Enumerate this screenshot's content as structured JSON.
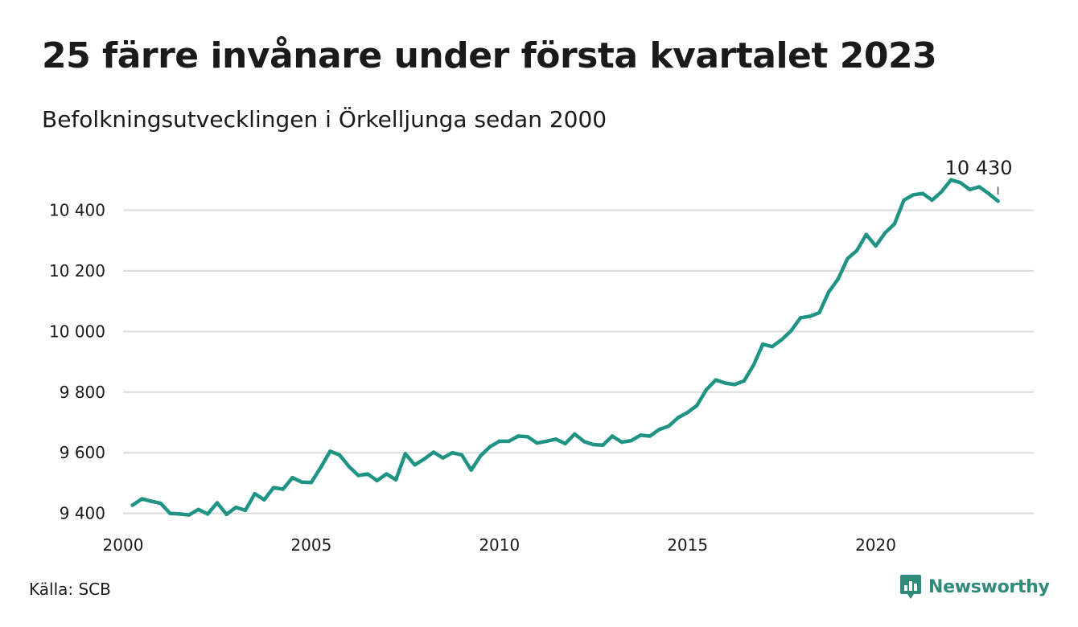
{
  "header": {
    "title": "25 färre invånare under första kvartalet 2023",
    "subtitle": "Befolkningsutvecklingen i Örkelljunga sedan 2000"
  },
  "footer": {
    "source": "Källa: SCB",
    "brand": "Newsworthy"
  },
  "colors": {
    "line": "#1f9384",
    "grid": "#dcdcdc",
    "brand": "#2f8a79"
  },
  "icons": {
    "brand_logo": "chat-bubble-bar-chart-icon"
  },
  "chart_data": {
    "type": "line",
    "title": "25 färre invånare under första kvartalet 2023",
    "subtitle": "Befolkningsutvecklingen i Örkelljunga sedan 2000",
    "xlabel": "",
    "ylabel": "",
    "xlim": [
      2000,
      2024.2
    ],
    "ylim": [
      9370,
      10510
    ],
    "x_ticks": [
      {
        "value": 2000,
        "label": "2000"
      },
      {
        "value": 2005,
        "label": "2005"
      },
      {
        "value": 2010,
        "label": "2010"
      },
      {
        "value": 2015,
        "label": "2015"
      },
      {
        "value": 2020,
        "label": "2020"
      }
    ],
    "y_ticks": [
      {
        "value": 9400,
        "label": "9 400"
      },
      {
        "value": 9600,
        "label": "9 600"
      },
      {
        "value": 9800,
        "label": "9 800"
      },
      {
        "value": 10000,
        "label": "10 000"
      },
      {
        "value": 10200,
        "label": "10 200"
      },
      {
        "value": 10400,
        "label": "10 400"
      }
    ],
    "grid": true,
    "legend": "none",
    "series": [
      {
        "x": [
          2000.25,
          2000.5,
          2000.75,
          2001.0,
          2001.25,
          2001.5,
          2001.75,
          2002.0,
          2002.25,
          2002.5,
          2002.75,
          2003.0,
          2003.25,
          2003.5,
          2003.75,
          2004.0,
          2004.25,
          2004.5,
          2004.75,
          2005.0,
          2005.25,
          2005.5,
          2005.75,
          2006.0,
          2006.25,
          2006.5,
          2006.75,
          2007.0,
          2007.25,
          2007.5,
          2007.75,
          2008.0,
          2008.25,
          2008.5,
          2008.75,
          2009.0,
          2009.25,
          2009.5,
          2009.75,
          2010.0,
          2010.25,
          2010.5,
          2010.75,
          2011.0,
          2011.25,
          2011.5,
          2011.75,
          2012.0,
          2012.25,
          2012.5,
          2012.75,
          2013.0,
          2013.25,
          2013.5,
          2013.75,
          2014.0,
          2014.25,
          2014.5,
          2014.75,
          2015.0,
          2015.25,
          2015.5,
          2015.75,
          2016.0,
          2016.25,
          2016.5,
          2016.75,
          2017.0,
          2017.25,
          2017.5,
          2017.75,
          2018.0,
          2018.25,
          2018.5,
          2018.75,
          2019.0,
          2019.25,
          2019.5,
          2019.75,
          2020.0,
          2020.25,
          2020.5,
          2020.75,
          2021.0,
          2021.25,
          2021.5,
          2021.75,
          2022.0,
          2022.25,
          2022.5,
          2022.75,
          2023.0,
          2023.25
        ],
        "values": [
          9427,
          9448,
          9440,
          9433,
          9400,
          9398,
          9395,
          9413,
          9398,
          9435,
          9397,
          9420,
          9410,
          9465,
          9445,
          9485,
          9480,
          9518,
          9503,
          9502,
          9551,
          9605,
          9593,
          9555,
          9525,
          9530,
          9508,
          9530,
          9511,
          9597,
          9560,
          9579,
          9602,
          9583,
          9600,
          9593,
          9543,
          9590,
          9620,
          9638,
          9638,
          9655,
          9653,
          9632,
          9638,
          9645,
          9630,
          9662,
          9637,
          9627,
          9625,
          9655,
          9635,
          9640,
          9658,
          9655,
          9677,
          9688,
          9716,
          9733,
          9756,
          9808,
          9840,
          9830,
          9825,
          9837,
          9888,
          9958,
          9950,
          9973,
          10002,
          10045,
          10050,
          10062,
          10130,
          10173,
          10240,
          10267,
          10320,
          10282,
          10325,
          10355,
          10433,
          10451,
          10455,
          10433,
          10461,
          10500,
          10491,
          10468,
          10477,
          10455,
          10430
        ]
      }
    ],
    "annotations": [
      {
        "x": 2023.25,
        "y": 10430,
        "label": "10 430"
      }
    ]
  }
}
